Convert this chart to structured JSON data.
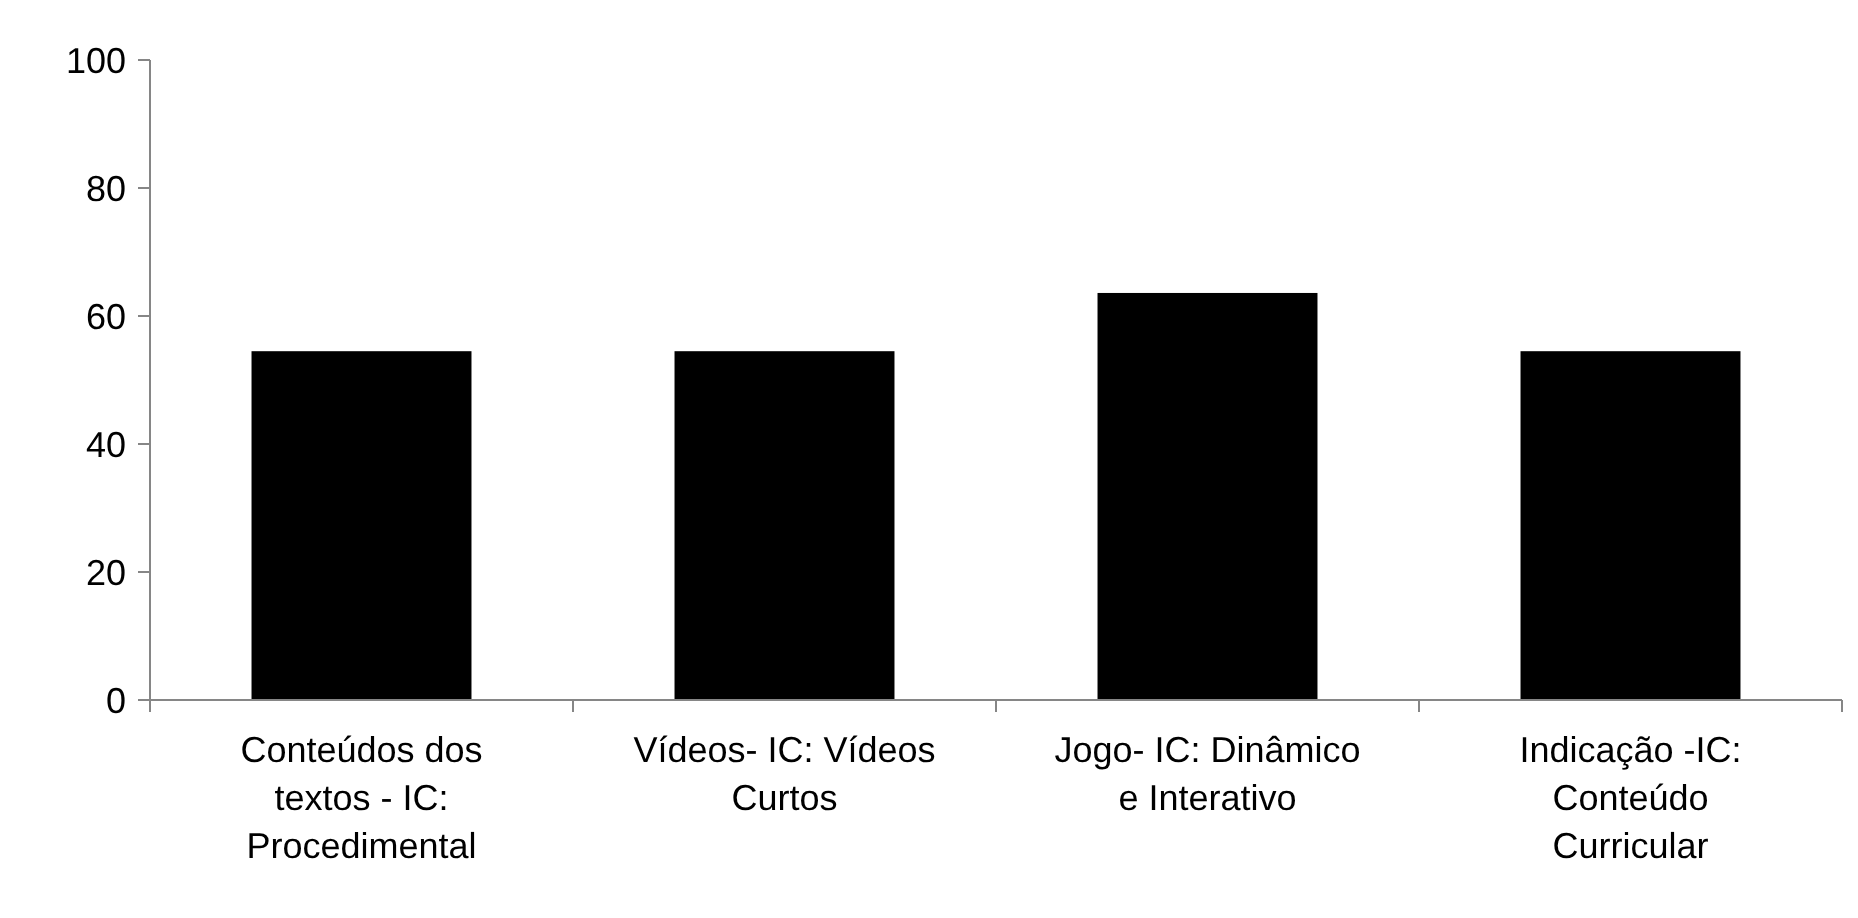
{
  "chart_data": {
    "type": "bar",
    "categories": [
      "Conteúdos dos textos - IC: Procedimental",
      "Vídeos- IC: Vídeos Curtos",
      "Jogo- IC: Dinâmico e Interativo",
      "Indicação -IC: Conteúdo Curricular"
    ],
    "values": [
      54.5,
      54.5,
      63.6,
      54.5
    ],
    "color": "#000000",
    "ylim": [
      0,
      100
    ],
    "yticks": [
      0,
      20,
      40,
      60,
      80,
      100
    ],
    "grid": false
  }
}
